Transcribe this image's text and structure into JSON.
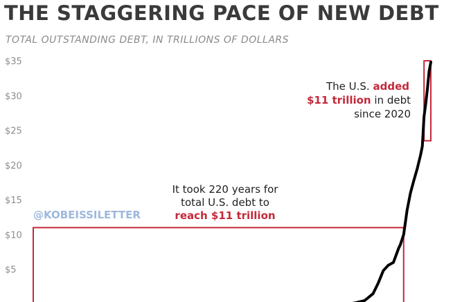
{
  "chart_data": {
    "type": "line",
    "title": "THE STAGGERING PACE OF NEW DEBT",
    "subtitle": "TOTAL OUTSTANDING DEBT, IN TRILLIONS OF DOLLARS",
    "xlabel": "",
    "ylabel": "",
    "ylim": [
      0,
      35
    ],
    "xlim": [
      1790,
      2024
    ],
    "y_ticks": [
      "$5",
      "$10",
      "$15",
      "$20",
      "$25",
      "$30",
      "$35"
    ],
    "y_tick_values": [
      5,
      10,
      15,
      20,
      25,
      30,
      35
    ],
    "grid": false,
    "legend": "none",
    "line_color": "#000000",
    "series": [
      {
        "x": [
          1790,
          1850,
          1900,
          1940,
          1960,
          1975,
          1980,
          1985,
          1990,
          1993,
          1996,
          1999,
          2002,
          2005,
          2006,
          2008,
          2010,
          2012,
          2014,
          2016,
          2018,
          2019,
          2020,
          2021,
          2022,
          2023,
          2024
        ],
        "values": [
          0,
          0,
          0,
          0,
          0,
          0,
          0.2,
          0.5,
          1.5,
          3.0,
          4.8,
          5.6,
          6.0,
          8.0,
          8.5,
          10.0,
          13.5,
          16.0,
          17.8,
          19.5,
          21.5,
          22.7,
          27.0,
          28.8,
          31.0,
          33.5,
          34.8
        ]
      }
    ],
    "highlight_boxes": [
      {
        "color": "#c4283a",
        "x_from": 1790,
        "x_to": 2008,
        "y_from": 0,
        "y_to": 11
      },
      {
        "color": "#c4283a",
        "x_from": 2020,
        "x_to": 2024,
        "y_from": 23.5,
        "y_to": 35
      }
    ],
    "annotations": {
      "top_line1_plain": "The U.S.",
      "top_line1_red": "added",
      "top_line2_red": "$11 trillion",
      "top_line2_plain": "in debt",
      "top_line3": "since 2020",
      "mid_line1": "It took 220 years for",
      "mid_line2": "total U.S. debt to",
      "mid_line3_red": "reach $11 trillion",
      "watermark": "@KOBEISSILETTER"
    },
    "highlight_color": "#c4283a"
  }
}
